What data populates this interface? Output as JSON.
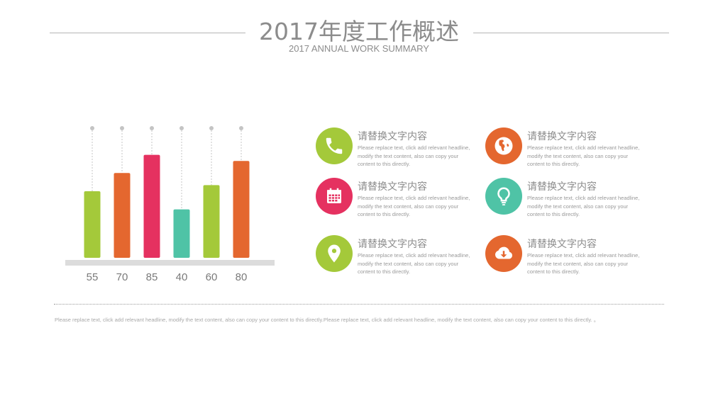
{
  "header": {
    "title": "2017年度工作概述",
    "subtitle": "2017 ANNUAL WORK SUMMARY"
  },
  "chart_data": {
    "type": "bar",
    "categories": [
      "55",
      "70",
      "85",
      "40",
      "60",
      "80"
    ],
    "values": [
      55,
      70,
      85,
      40,
      60,
      80
    ],
    "colors": [
      "#a4c93a",
      "#e4672f",
      "#e53160",
      "#4fc3a6",
      "#a4c93a",
      "#e4672f"
    ],
    "title": "",
    "xlabel": "",
    "ylabel": "",
    "ylim": [
      0,
      100
    ],
    "grid": false,
    "base_color": "#dcdcdc",
    "marker_color": "#c4c4c4"
  },
  "features": [
    {
      "icon": "phone-icon",
      "color": "#a4c93a",
      "heading": "请替换文字内容",
      "text": "Please replace text, click add relevant headline, modify the text content, also can copy your content to this directly."
    },
    {
      "icon": "globe-icon",
      "color": "#e4672f",
      "heading": "请替换文字内容",
      "text": "Please replace text, click add relevant headline, modify the text content, also can copy your content to this directly."
    },
    {
      "icon": "calendar-icon",
      "color": "#e53160",
      "heading": "请替换文字内容",
      "text": "Please replace text, click add relevant headline, modify the text content, also can copy your content to this directly."
    },
    {
      "icon": "lightbulb-icon",
      "color": "#4fc3a6",
      "heading": "请替换文字内容",
      "text": "Please replace text, click add relevant headline, modify the text content, also can copy your content to this directly."
    },
    {
      "icon": "location-pin-icon",
      "color": "#a4c93a",
      "heading": "请替换文字内容",
      "text": "Please replace text, click add relevant headline, modify the text content, also can copy your content to this directly."
    },
    {
      "icon": "cloud-download-icon",
      "color": "#e4672f",
      "heading": "请替换文字内容",
      "text": "Please replace text, click add relevant headline, modify the text content, also can copy your content to this directly."
    }
  ],
  "footer": {
    "text": "Please replace text, click add relevant headline, modify the text content, also can copy your content to this directly.Please replace text, click add relevant headline, modify the text content, also can copy your content to this directly. 。"
  }
}
